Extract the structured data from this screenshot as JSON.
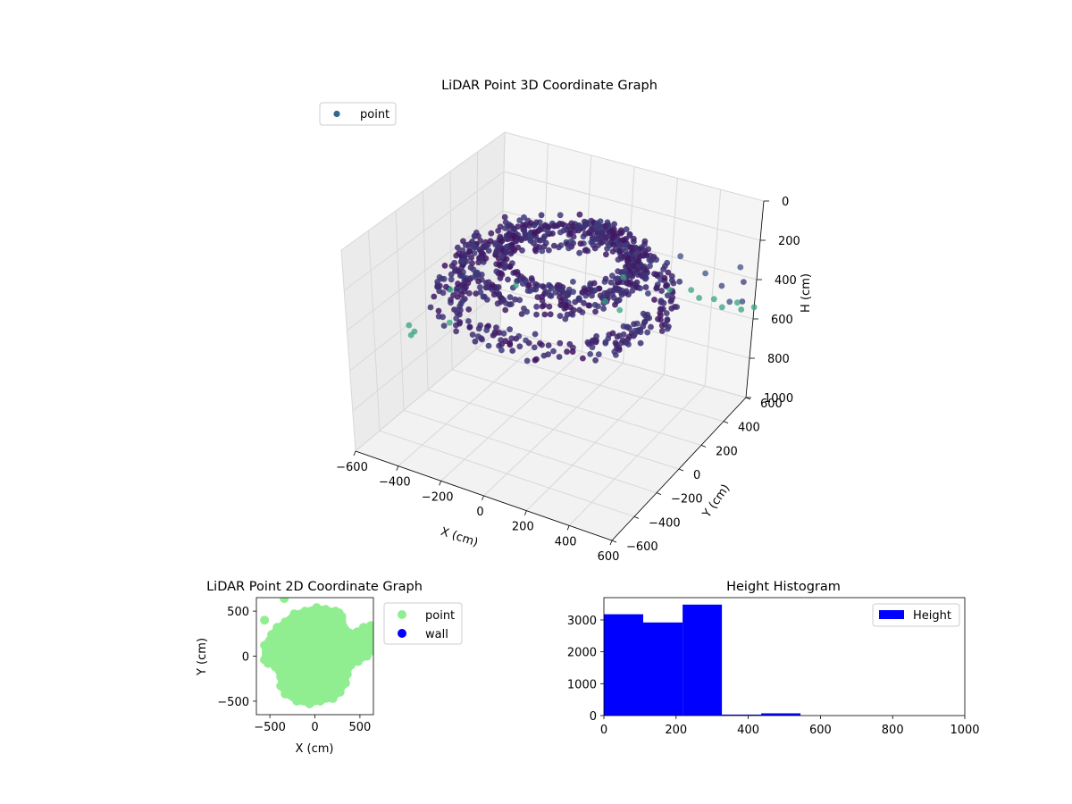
{
  "chart_data": [
    {
      "type": "scatter",
      "projection": "3d",
      "title": "LiDAR Point 3D Coordinate Graph",
      "xlabel": "X (cm)",
      "ylabel": "Y (cm)",
      "zlabel": "H (cm)",
      "xlim": [
        -600,
        600
      ],
      "ylim": [
        -600,
        600
      ],
      "zlim": [
        1000,
        0
      ],
      "z_inverted": true,
      "xticks": [
        -600,
        -400,
        -200,
        0,
        200,
        400,
        600
      ],
      "yticks": [
        -600,
        -400,
        -200,
        0,
        200,
        400,
        600
      ],
      "zticks": [
        0,
        200,
        400,
        600,
        800,
        1000
      ],
      "legend": {
        "entries": [
          "point"
        ],
        "placement": "upper-left"
      },
      "colormap": "viridis",
      "colors": {
        "low": "#440154",
        "mid": "#3b528b",
        "high": "#5ec962",
        "legend_marker": "#31688e"
      },
      "series": [
        {
          "name": "point",
          "description_of_distribution": "dense ring-shaped clusters at heights 100-300 cm, sparse points up to about 550 cm",
          "clusters": [
            {
              "cx": 0,
              "cy": 0,
              "rx": 480,
              "ry": 480,
              "z": 320,
              "count": 360
            },
            {
              "cx": -50,
              "cy": 50,
              "rx": 380,
              "ry": 380,
              "z": 220,
              "count": 300
            },
            {
              "cx": 50,
              "cy": 0,
              "rx": 300,
              "ry": 300,
              "z": 120,
              "count": 260
            }
          ],
          "outliers": [
            {
              "x": 400,
              "y": 520,
              "z": 380
            },
            {
              "x": 480,
              "y": 520,
              "z": 420
            },
            {
              "x": 560,
              "y": 560,
              "z": 400
            },
            {
              "x": 520,
              "y": 600,
              "z": 360
            },
            {
              "x": 600,
              "y": 480,
              "z": 440
            },
            {
              "x": 580,
              "y": 400,
              "z": 400
            },
            {
              "x": 300,
              "y": 480,
              "z": 300
            },
            {
              "x": -560,
              "y": -200,
              "z": 560
            },
            {
              "x": -500,
              "y": -260,
              "z": 540
            },
            {
              "x": -480,
              "y": -320,
              "z": 520
            },
            {
              "x": -420,
              "y": -120,
              "z": 540
            },
            {
              "x": -520,
              "y": 60,
              "z": 500
            },
            {
              "x": -300,
              "y": 200,
              "z": 480
            },
            {
              "x": 60,
              "y": 300,
              "z": 500
            },
            {
              "x": 160,
              "y": 240,
              "z": 480
            },
            {
              "x": 220,
              "y": 560,
              "z": 540
            },
            {
              "x": 300,
              "y": 600,
              "z": 540
            },
            {
              "x": 360,
              "y": 560,
              "z": 540
            },
            {
              "x": 420,
              "y": 580,
              "z": 540
            },
            {
              "x": 480,
              "y": 540,
              "z": 540
            },
            {
              "x": 520,
              "y": 600,
              "z": 540
            },
            {
              "x": 560,
              "y": 560,
              "z": 540
            },
            {
              "x": 600,
              "y": 600,
              "z": 540
            },
            {
              "x": 0,
              "y": 560,
              "z": 540
            }
          ]
        }
      ]
    },
    {
      "type": "scatter",
      "title": "LiDAR Point 2D Coordinate Graph",
      "xlabel": "X (cm)",
      "ylabel": "Y (cm)",
      "xlim": [
        -650,
        650
      ],
      "ylim": [
        -650,
        650
      ],
      "xticks": [
        -500,
        0,
        500
      ],
      "yticks": [
        -500,
        0,
        500
      ],
      "legend": {
        "entries": [
          "point",
          "wall"
        ],
        "placement": "outside-right"
      },
      "series": [
        {
          "name": "point",
          "color": "#90ee90",
          "blob_outline": [
            [
              -560,
              -40
            ],
            [
              -560,
              120
            ],
            [
              -480,
              240
            ],
            [
              -420,
              320
            ],
            [
              -330,
              380
            ],
            [
              -230,
              470
            ],
            [
              -110,
              500
            ],
            [
              20,
              540
            ],
            [
              120,
              520
            ],
            [
              230,
              500
            ],
            [
              300,
              390
            ],
            [
              380,
              260
            ],
            [
              470,
              270
            ],
            [
              540,
              320
            ],
            [
              620,
              340
            ],
            [
              650,
              300
            ],
            [
              640,
              60
            ],
            [
              580,
              0
            ],
            [
              480,
              -60
            ],
            [
              400,
              -100
            ],
            [
              360,
              -200
            ],
            [
              340,
              -300
            ],
            [
              280,
              -400
            ],
            [
              200,
              -470
            ],
            [
              60,
              -500
            ],
            [
              -60,
              -530
            ],
            [
              -200,
              -500
            ],
            [
              -330,
              -420
            ],
            [
              -380,
              -330
            ],
            [
              -380,
              -230
            ],
            [
              -440,
              -120
            ],
            [
              -520,
              -80
            ]
          ],
          "extra_points": [
            {
              "x": -560,
              "y": 400
            },
            {
              "x": -340,
              "y": 640
            },
            {
              "x": 270,
              "y": 480
            },
            {
              "x": 300,
              "y": 440
            }
          ]
        },
        {
          "name": "wall",
          "color": "#0000ff",
          "points": []
        }
      ]
    },
    {
      "type": "bar",
      "title": "Height Histogram",
      "xlabel": "",
      "ylabel": "",
      "xlim": [
        0,
        1000
      ],
      "ylim": [
        0,
        3700
      ],
      "xticks": [
        0,
        200,
        400,
        600,
        800,
        1000
      ],
      "yticks": [
        0,
        1000,
        2000,
        3000
      ],
      "legend": {
        "entries": [
          "Height"
        ],
        "placement": "upper-right"
      },
      "series": [
        {
          "name": "Height",
          "color": "#0000ff",
          "bins": [
            {
              "x0": 0,
              "x1": 109,
              "value": 3180
            },
            {
              "x0": 109,
              "x1": 218,
              "value": 2920
            },
            {
              "x0": 218,
              "x1": 327,
              "value": 3480
            },
            {
              "x0": 327,
              "x1": 436,
              "value": 30
            },
            {
              "x0": 436,
              "x1": 545,
              "value": 70
            }
          ]
        }
      ]
    }
  ]
}
